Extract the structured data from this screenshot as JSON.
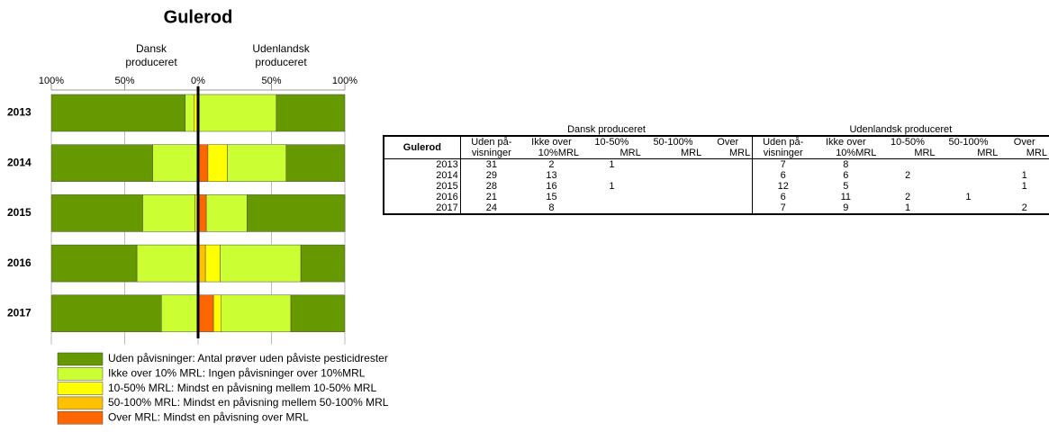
{
  "chart_data": {
    "type": "bar",
    "title": "Gulerod",
    "left_label": [
      "Dansk",
      "produceret"
    ],
    "right_label": [
      "Udenlandsk",
      "produceret"
    ],
    "categories": [
      "2013",
      "2014",
      "2015",
      "2016",
      "2017"
    ],
    "xlim": [
      -100,
      100
    ],
    "xticks": [
      {
        "value": -100,
        "label": "100%"
      },
      {
        "value": -50,
        "label": "50%"
      },
      {
        "value": 0,
        "label": "0%"
      },
      {
        "value": 50,
        "label": "50%"
      },
      {
        "value": 100,
        "label": "100%"
      }
    ],
    "series": [
      {
        "name": "Uden påvisninger: Antal prøver uden påviste pesticidrester",
        "color": "#669900",
        "dansk": [
          91.2,
          69.0,
          62.2,
          58.3,
          75.0
        ],
        "udenlandsk": [
          46.7,
          40.0,
          66.7,
          30.0,
          36.8
        ]
      },
      {
        "name": "Ikke over 10% MRL: Ingen påvisninger over 10%MRL",
        "color": "#ccff33",
        "dansk": [
          5.9,
          31.0,
          35.6,
          41.7,
          25.0
        ],
        "udenlandsk": [
          53.3,
          40.0,
          27.8,
          55.0,
          47.4
        ]
      },
      {
        "name": "10-50% MRL: Mindst en påvisning mellem 10-50% MRL",
        "color": "#ffff00",
        "dansk": [
          2.9,
          0,
          2.2,
          0,
          0
        ],
        "udenlandsk": [
          0,
          13.3,
          0,
          10.0,
          5.3
        ]
      },
      {
        "name": "50-100% MRL: Mindst en påvisning mellem 50-100% MRL",
        "color": "#ffc000",
        "dansk": [
          0,
          0,
          0,
          0,
          0
        ],
        "udenlandsk": [
          0,
          0,
          0,
          5.0,
          0
        ]
      },
      {
        "name": "Over MRL:  Mindst en påvisning over MRL",
        "color": "#ff6600",
        "dansk": [
          0,
          0,
          0,
          0,
          0
        ],
        "udenlandsk": [
          0,
          6.7,
          5.6,
          0,
          10.5
        ]
      }
    ]
  },
  "table": {
    "groups": [
      "Dansk produceret",
      "Udenlandsk produceret"
    ],
    "corner": "Gulerod",
    "columns": [
      [
        "Uden på-",
        "visninger"
      ],
      [
        "Ikke over",
        "10%MRL"
      ],
      [
        "10-50%",
        "MRL"
      ],
      [
        "50-100%",
        "MRL"
      ],
      [
        "Over",
        "MRL"
      ],
      [
        "Uden på-",
        "visninger"
      ],
      [
        "Ikke over",
        "10%MRL"
      ],
      [
        "10-50%",
        "MRL"
      ],
      [
        "50-100%",
        "MRL"
      ],
      [
        "Over",
        "MRL"
      ]
    ],
    "rows": [
      [
        "2013",
        31,
        2,
        1,
        null,
        null,
        7,
        8,
        null,
        null,
        null
      ],
      [
        "2014",
        29,
        13,
        null,
        null,
        null,
        6,
        6,
        2,
        null,
        1
      ],
      [
        "2015",
        28,
        16,
        1,
        null,
        null,
        12,
        5,
        null,
        null,
        1
      ],
      [
        "2016",
        21,
        15,
        null,
        null,
        null,
        6,
        11,
        2,
        1,
        null
      ],
      [
        "2017",
        24,
        8,
        null,
        null,
        null,
        7,
        9,
        1,
        null,
        2
      ]
    ]
  }
}
